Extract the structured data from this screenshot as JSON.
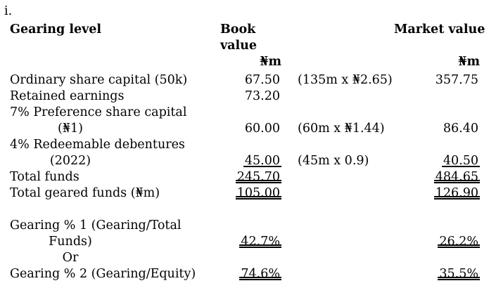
{
  "page": {
    "item_marker": "i."
  },
  "table": {
    "headers": {
      "gearing_level": "Gearing level",
      "book_value": "Book value",
      "market_value": "Market value",
      "book_unit": "₦m",
      "market_unit": "₦m"
    },
    "rows": [
      {
        "label": "Ordinary share capital (50k)",
        "book": "67.50",
        "calc": "(135m x ₦2.65)",
        "market": "357.75"
      },
      {
        "label": "Retained earnings",
        "book": "73.20"
      },
      {
        "label": "7% Preference share capital"
      },
      {
        "label": "(₦1)",
        "book": "60.00",
        "calc": "(60m x ₦1.44)",
        "market": "86.40"
      },
      {
        "label": "4% Redeemable debentures"
      },
      {
        "label": "(2022)",
        "book": "45.00",
        "calc": "(45m x 0.9)",
        "market": "40.50"
      },
      {
        "label": "Total funds",
        "book": "245.70",
        "market": "484.65"
      },
      {
        "label": "Total geared funds (₦m)",
        "book": "105.00",
        "market": "126.90"
      },
      {
        "label": "Gearing % 1 (Gearing/Total"
      },
      {
        "label": "Funds)",
        "book": "42.7%",
        "market": "26.2%"
      },
      {
        "label": "Or"
      },
      {
        "label": "Gearing % 2 (Gearing/Equity)",
        "book": "74.6%",
        "market": "35.5%"
      }
    ]
  }
}
